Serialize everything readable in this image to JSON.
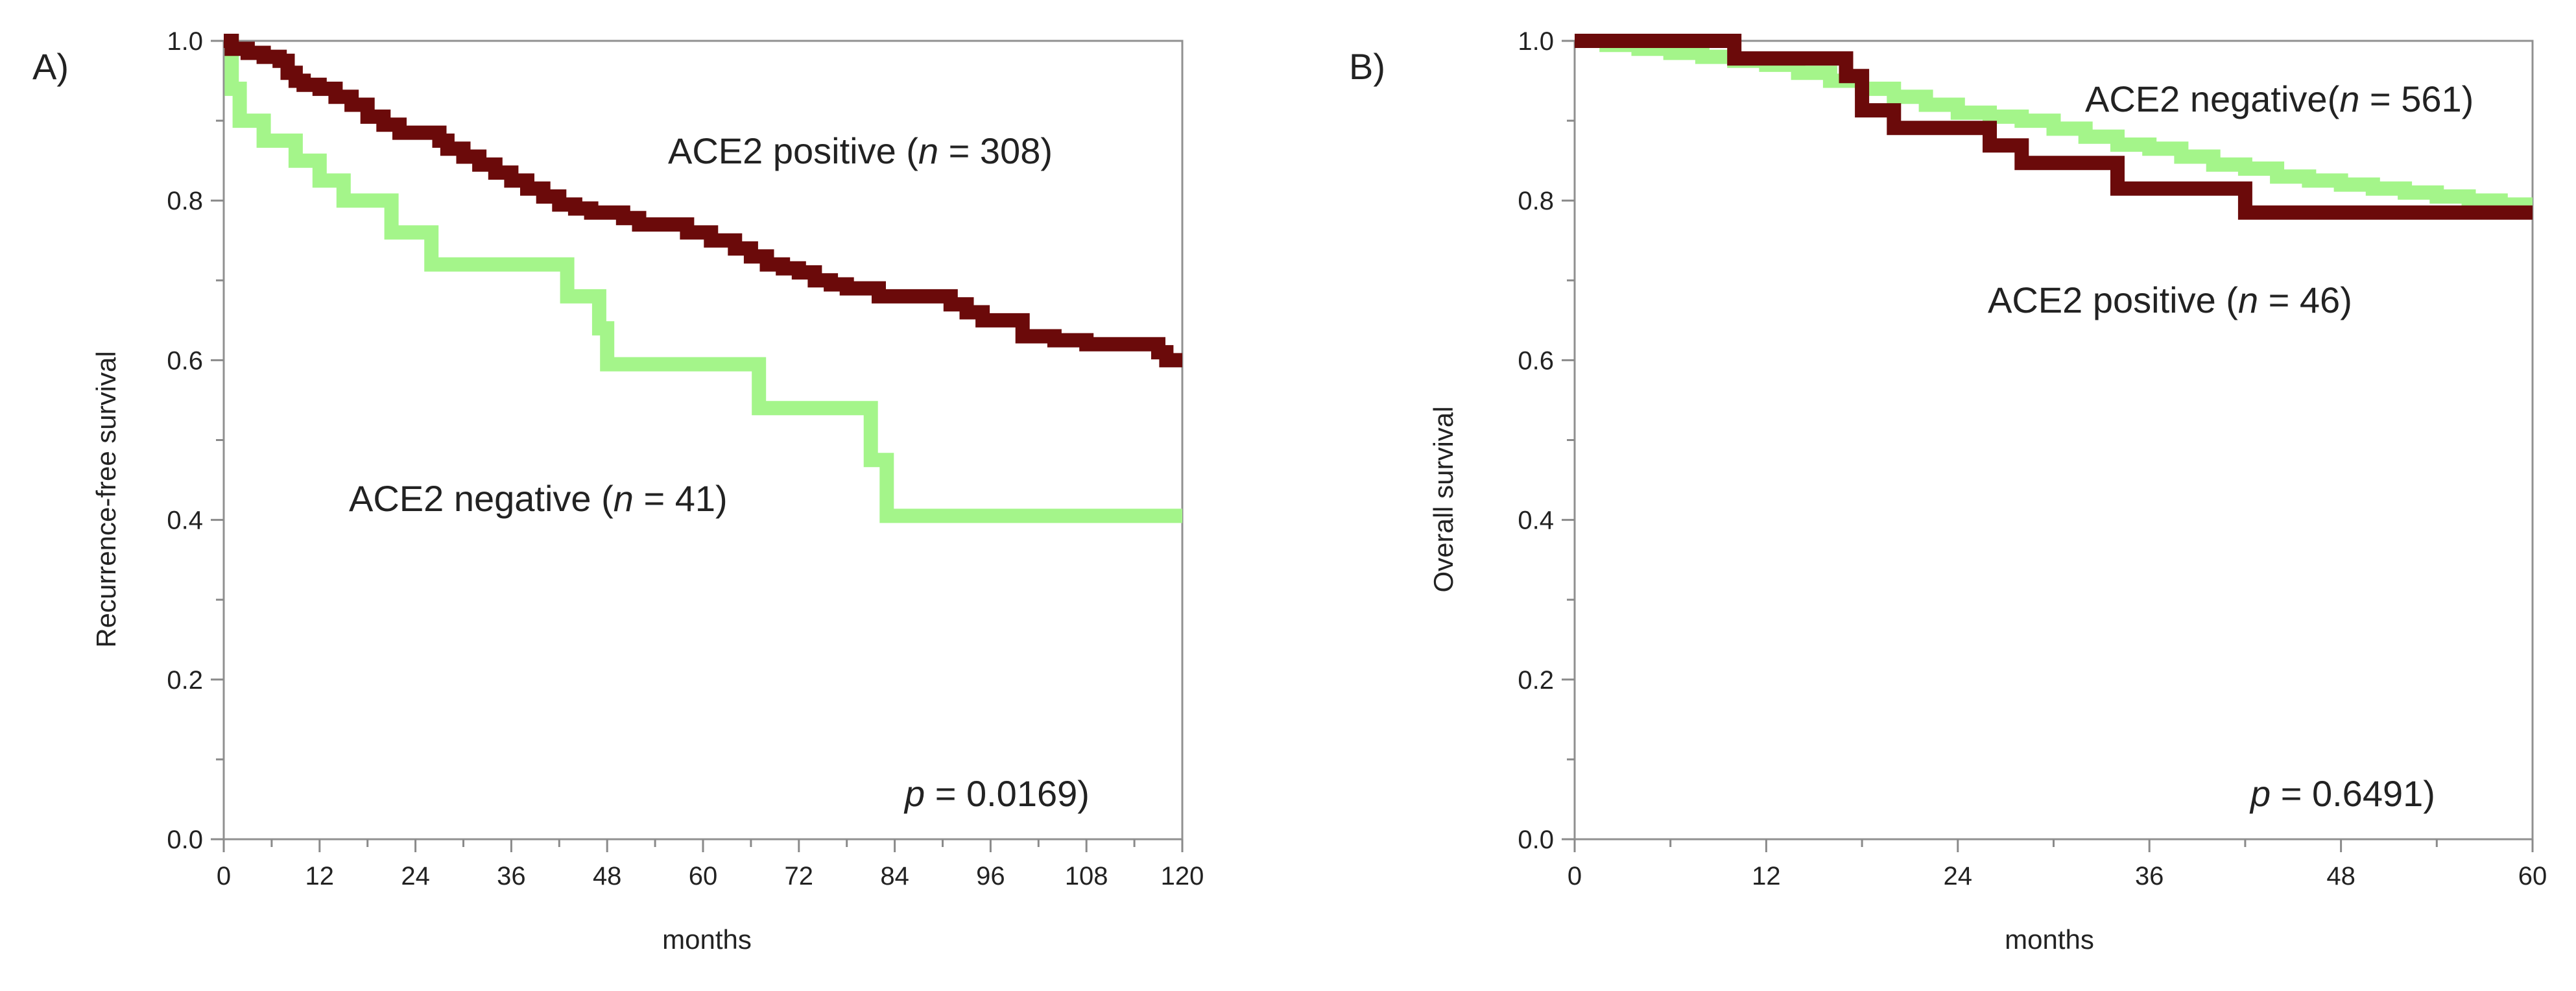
{
  "chart_data": [
    {
      "type": "line",
      "step": true,
      "panel_label": "A)",
      "xlabel": "months",
      "ylabel": "Recurrence-free survival",
      "xlim": [
        0,
        120
      ],
      "ylim": [
        0,
        1
      ],
      "xticks": [
        0,
        12,
        24,
        36,
        48,
        60,
        72,
        84,
        96,
        108,
        120
      ],
      "yticks": [
        0.0,
        0.2,
        0.4,
        0.6,
        0.8,
        1.0
      ],
      "ytick_labels": [
        "0.0",
        "0.2",
        "0.4",
        "0.6",
        "0.8",
        "1.0"
      ],
      "grid": false,
      "series": [
        {
          "name": "ACE2 positive",
          "n": "308",
          "color": "#6b0a0a",
          "x": [
            0,
            1,
            3,
            5,
            7,
            8,
            9,
            10,
            12,
            14,
            16,
            18,
            20,
            22,
            27,
            28,
            30,
            32,
            34,
            36,
            38,
            40,
            42,
            44,
            46,
            50,
            52,
            58,
            61,
            64,
            66,
            68,
            70,
            72,
            74,
            76,
            78,
            82,
            91,
            93,
            95,
            100,
            104,
            108,
            117,
            118,
            120
          ],
          "y": [
            1.0,
            0.99,
            0.985,
            0.98,
            0.975,
            0.96,
            0.95,
            0.945,
            0.94,
            0.93,
            0.92,
            0.905,
            0.895,
            0.885,
            0.875,
            0.865,
            0.855,
            0.845,
            0.835,
            0.825,
            0.815,
            0.805,
            0.795,
            0.79,
            0.785,
            0.778,
            0.77,
            0.76,
            0.75,
            0.74,
            0.73,
            0.72,
            0.715,
            0.71,
            0.7,
            0.695,
            0.69,
            0.68,
            0.67,
            0.66,
            0.65,
            0.63,
            0.625,
            0.62,
            0.61,
            0.6,
            0.6
          ]
        },
        {
          "name": "ACE2 negative",
          "n": "41",
          "color": "#a4f58a",
          "x": [
            0,
            1,
            2,
            5,
            9,
            12,
            15,
            21,
            26,
            43,
            47,
            48,
            67,
            81,
            83,
            120
          ],
          "y": [
            1.0,
            0.94,
            0.9,
            0.875,
            0.85,
            0.825,
            0.8,
            0.76,
            0.72,
            0.68,
            0.64,
            0.595,
            0.54,
            0.475,
            0.405,
            0.405
          ]
        }
      ],
      "annotations": {
        "positive": {
          "prefix": "ACE2 positive (",
          "n_symbol": "n",
          "suffix": " = 308)"
        },
        "negative": {
          "prefix": "ACE2 negative (",
          "n_symbol": "n",
          "suffix": " = 41)"
        },
        "p_value": {
          "symbol": "p",
          "text": " = 0.0169)"
        }
      }
    },
    {
      "type": "line",
      "step": true,
      "panel_label": "B)",
      "xlabel": "months",
      "ylabel": "Overall survival",
      "xlim": [
        0,
        60
      ],
      "ylim": [
        0,
        1
      ],
      "xticks": [
        0,
        12,
        24,
        36,
        48,
        60
      ],
      "yticks": [
        0.0,
        0.2,
        0.4,
        0.6,
        0.8,
        1.0
      ],
      "ytick_labels": [
        "0.0",
        "0.2",
        "0.4",
        "0.6",
        "0.8",
        "1.0"
      ],
      "grid": false,
      "series": [
        {
          "name": "ACE2 negative",
          "n": "561",
          "color": "#a4f58a",
          "x": [
            0,
            2,
            4,
            6,
            8,
            10,
            12,
            14,
            16,
            18,
            20,
            22,
            24,
            26,
            28,
            30,
            32,
            34,
            36,
            38,
            40,
            42,
            44,
            46,
            48,
            50,
            52,
            54,
            56,
            58,
            60
          ],
          "y": [
            1.0,
            0.995,
            0.99,
            0.985,
            0.98,
            0.975,
            0.97,
            0.96,
            0.95,
            0.94,
            0.93,
            0.92,
            0.91,
            0.905,
            0.9,
            0.89,
            0.88,
            0.87,
            0.865,
            0.855,
            0.845,
            0.84,
            0.83,
            0.825,
            0.82,
            0.815,
            0.81,
            0.805,
            0.8,
            0.795,
            0.795
          ]
        },
        {
          "name": "ACE2 positive",
          "n": "46",
          "color": "#6b0a0a",
          "x": [
            0,
            10,
            17,
            18,
            20,
            26,
            28,
            34,
            42,
            60
          ],
          "y": [
            1.0,
            0.978,
            0.956,
            0.913,
            0.891,
            0.869,
            0.847,
            0.815,
            0.785,
            0.785
          ]
        }
      ],
      "annotations": {
        "positive": {
          "prefix": "ACE2 positive (",
          "n_symbol": "n",
          "suffix": " = 46)"
        },
        "negative": {
          "prefix": "ACE2 negative(",
          "n_symbol": "n",
          "suffix": " = 561)"
        },
        "p_value": {
          "symbol": "p",
          "text": " = 0.6491)"
        }
      }
    }
  ]
}
